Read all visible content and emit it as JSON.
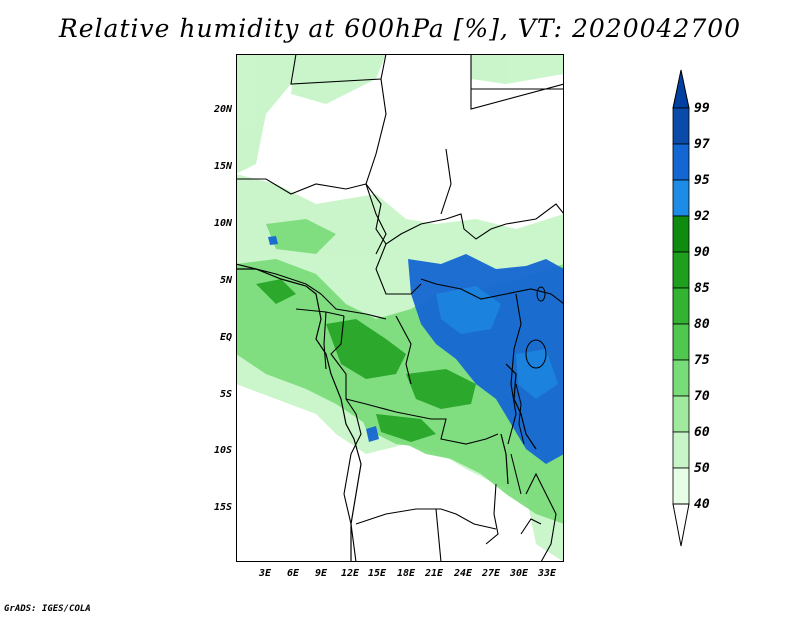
{
  "title": "Relative humidity at 600hPa [%], VT: 2020042700",
  "credit": "GrADS: IGES/COLA",
  "lat_labels": [
    "20N",
    "15N",
    "10N",
    "5N",
    "EQ",
    "5S",
    "10S",
    "15S"
  ],
  "lat_values": [
    20,
    15,
    10,
    5,
    0,
    -5,
    -10,
    -15
  ],
  "lon_labels": [
    "3E",
    "6E",
    "9E",
    "12E",
    "15E",
    "18E",
    "21E",
    "24E",
    "27E",
    "30E",
    "33E"
  ],
  "lon_values": [
    3,
    6,
    9,
    12,
    15,
    18,
    21,
    24,
    27,
    30,
    33
  ],
  "map_extent": {
    "lon_min": 0,
    "lon_max": 34.5,
    "lat_min": -19.7,
    "lat_max": 24.8
  },
  "colorbar": {
    "levels": [
      "40",
      "50",
      "60",
      "70",
      "75",
      "80",
      "85",
      "90",
      "92",
      "95",
      "97",
      "99"
    ],
    "colors": [
      "#ffffff",
      "#e6fde6",
      "#c8f5c8",
      "#a0eaa0",
      "#78dc78",
      "#50c850",
      "#32b432",
      "#1ea01e",
      "#0f8c0f",
      "#1c8ce6",
      "#1466d2",
      "#0a4aa8",
      "#0040a0"
    ]
  },
  "map_colors": {
    "green_light": "#c8f5c8",
    "green_mid": "#78dc78",
    "green_dark": "#1ea01e",
    "blue": "#1466d2",
    "blue_light": "#1c8ce6",
    "border": "#000000"
  }
}
